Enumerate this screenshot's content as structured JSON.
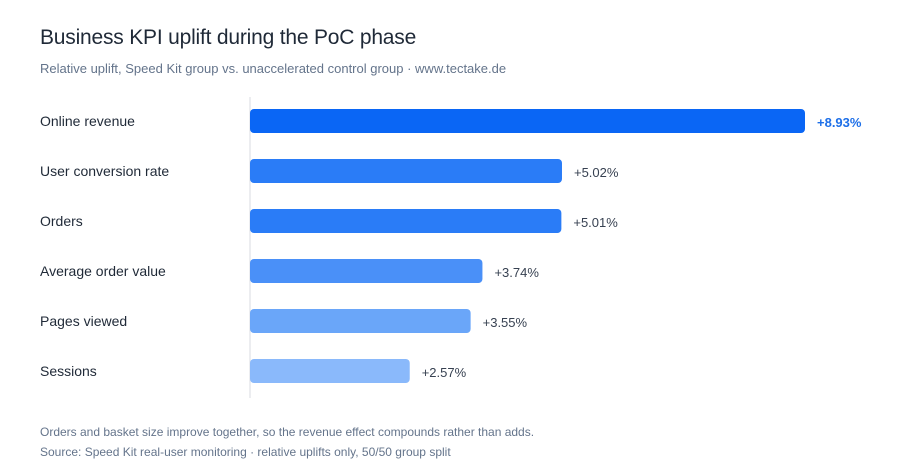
{
  "title": "Business KPI uplift during the PoC phase",
  "subtitle": "Relative uplift, Speed Kit group vs. unaccelerated control group · www.tectake.de",
  "footnote": "Orders and basket size improve together, so the revenue effect compounds rather than adds.",
  "source": "Source: Speed Kit real-user monitoring · relative uplifts only, 50/50 group split",
  "chart_data": {
    "type": "bar",
    "orientation": "horizontal",
    "categories": [
      "Online revenue",
      "User conversion rate",
      "Orders",
      "Average order value",
      "Pages viewed",
      "Sessions"
    ],
    "values": [
      8.93,
      5.02,
      5.01,
      3.74,
      3.55,
      2.57
    ],
    "value_labels": [
      "+8.93%",
      "+5.02%",
      "+5.01%",
      "+3.74%",
      "+3.55%",
      "+2.57%"
    ],
    "title": "Business KPI uplift during the PoC phase",
    "xlabel": "",
    "ylabel": "",
    "xlim": [
      0,
      8.93
    ],
    "grid": false,
    "colors": [
      "#0a66f5",
      "#2a7cf7",
      "#2a7cf7",
      "#4a90f8",
      "#6aa6f9",
      "#8ab9fb"
    ],
    "highlight_label_color": "#1d6fe8"
  }
}
